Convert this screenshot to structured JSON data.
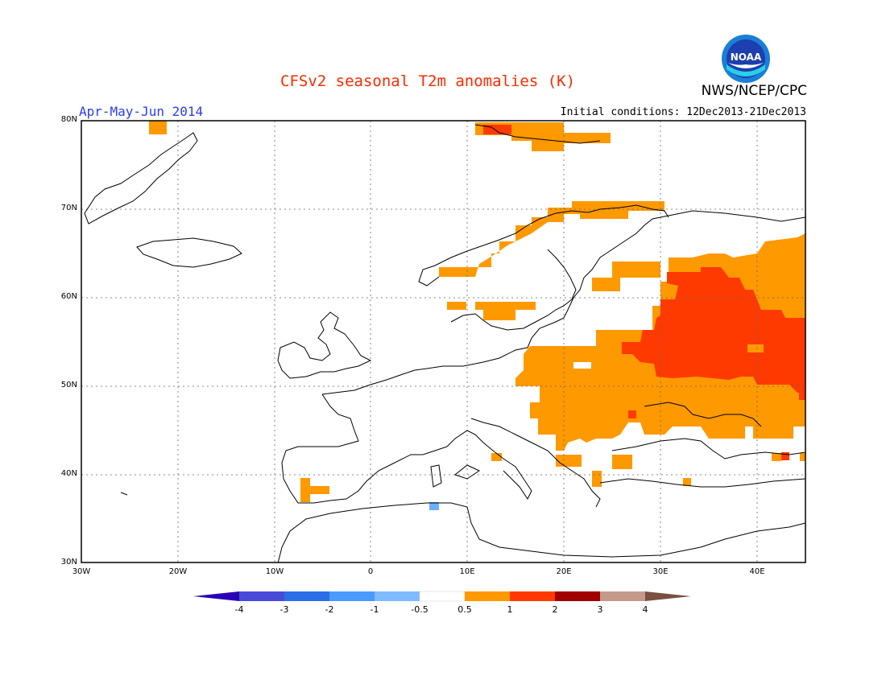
{
  "header": {
    "title": "CFSv2 seasonal T2m anomalies (K)",
    "period": "Apr-May-Jun 2014",
    "initial_conditions": "Initial conditions: 12Dec2013-21Dec2013",
    "agency": "NWS/NCEP/CPC",
    "logo_text": "NOAA"
  },
  "colors": {
    "title": "#ff2a00",
    "period": "#2a3cff",
    "anom_05_1": "#ff9900",
    "anom_1_2": "#ff3a00",
    "anom_neg_05_1": "#6ab0ff",
    "land": "#ffffff"
  },
  "map": {
    "lon_range": [
      -30,
      45
    ],
    "lat_range": [
      30,
      80
    ],
    "y_ticks": [
      "80N",
      "70N",
      "60N",
      "50N",
      "40N",
      "30N"
    ],
    "x_ticks": [
      "30W",
      "20W",
      "10W",
      "0",
      "10E",
      "20E",
      "30E",
      "40E"
    ]
  },
  "colorbar": {
    "labels": [
      "-4",
      "-3",
      "-2",
      "-1",
      "-0.5",
      "0.5",
      "1",
      "2",
      "3",
      "4"
    ],
    "colors": [
      "#2a00b5",
      "#4a4ad8",
      "#2a6ee8",
      "#4a9aff",
      "#7fbcff",
      "#ffffff",
      "#ff9900",
      "#ff3a00",
      "#a00000",
      "#c49a8a",
      "#7a5040"
    ]
  }
}
